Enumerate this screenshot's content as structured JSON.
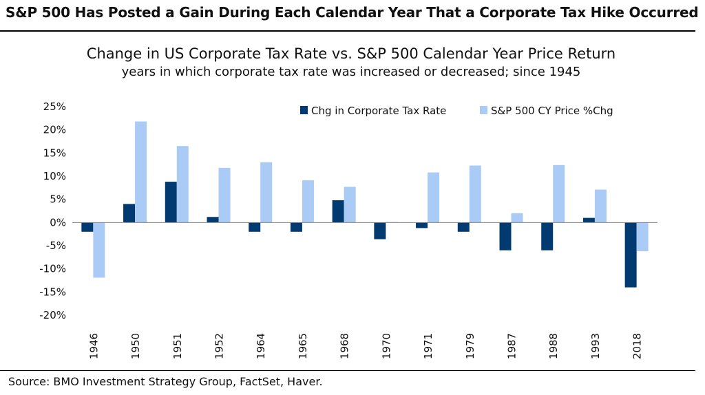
{
  "headline": "S&P 500 Has Posted a Gain During Each Calendar Year That a Corporate Tax Hike Occurred",
  "source": "Source: BMO Investment Strategy Group, FactSet, Haver.",
  "colors": {
    "tax": "#003a70",
    "spx": "#a9cbf5",
    "axis": "#888888"
  },
  "chart_data": {
    "type": "bar",
    "title": "Change in US Corporate Tax Rate vs. S&P 500 Calendar Year Price Return",
    "subtitle": "years in which corporate tax rate was increased or decreased; since 1945",
    "categories": [
      "1946",
      "1950",
      "1951",
      "1952",
      "1964",
      "1965",
      "1968",
      "1970",
      "1971",
      "1979",
      "1987",
      "1988",
      "1993",
      "2018"
    ],
    "series": [
      {
        "name": "Chg in Corporate Tax Rate",
        "color": "#003a70",
        "values": [
          -2.0,
          4.0,
          8.8,
          1.2,
          -2.0,
          -2.0,
          4.8,
          -3.6,
          -1.2,
          -2.0,
          -6.0,
          -6.0,
          1.0,
          -14.0
        ]
      },
      {
        "name": "S&P 500 CY Price %Chg",
        "color": "#a9cbf5",
        "values": [
          -11.9,
          21.8,
          16.5,
          11.8,
          13.0,
          9.1,
          7.7,
          0.1,
          10.8,
          12.3,
          2.0,
          12.4,
          7.1,
          -6.2
        ]
      }
    ],
    "ylim": [
      -20,
      25
    ],
    "yticks": [
      "25%",
      "20%",
      "15%",
      "10%",
      "5%",
      "0%",
      "-5%",
      "-10%",
      "-15%",
      "-20%"
    ],
    "ytick_values": [
      25,
      20,
      15,
      10,
      5,
      0,
      -5,
      -10,
      -15,
      -20
    ],
    "legend_position": "top-right",
    "grid": false
  }
}
